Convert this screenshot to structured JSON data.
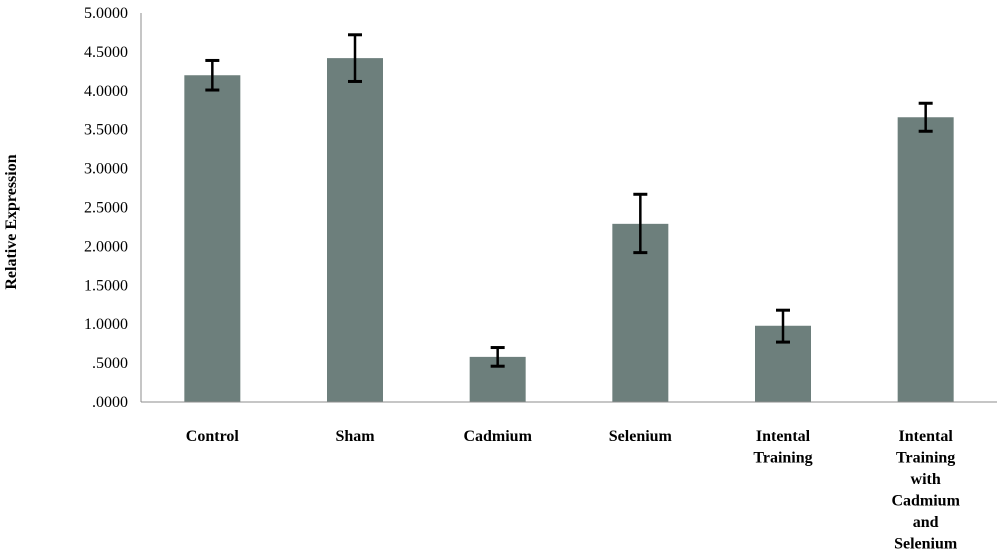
{
  "chart_data": {
    "type": "bar",
    "title": "",
    "xlabel": "",
    "ylabel": "Relative Expression",
    "ylim": [
      0,
      5
    ],
    "y_ticks": [
      ".0000",
      ".5000",
      "1.0000",
      "1.5000",
      "2.0000",
      "2.5000",
      "3.0000",
      "3.5000",
      "4.0000",
      "4.5000",
      "5.0000"
    ],
    "categories": [
      [
        "Control"
      ],
      [
        "Sham"
      ],
      [
        "Cadmium"
      ],
      [
        "Selenium"
      ],
      [
        "Intental",
        "Training"
      ],
      [
        "Intental",
        "Training",
        "with",
        "Cadmium",
        "and",
        "Selenium"
      ]
    ],
    "values": [
      4.2,
      4.42,
      0.58,
      2.29,
      0.98,
      3.66
    ],
    "error_low": [
      4.01,
      4.12,
      0.46,
      1.92,
      0.77,
      3.48
    ],
    "error_high": [
      4.39,
      4.72,
      0.7,
      2.67,
      1.18,
      3.84
    ],
    "bar_color": "#6d7f7c",
    "grid": false,
    "legend": "none"
  }
}
